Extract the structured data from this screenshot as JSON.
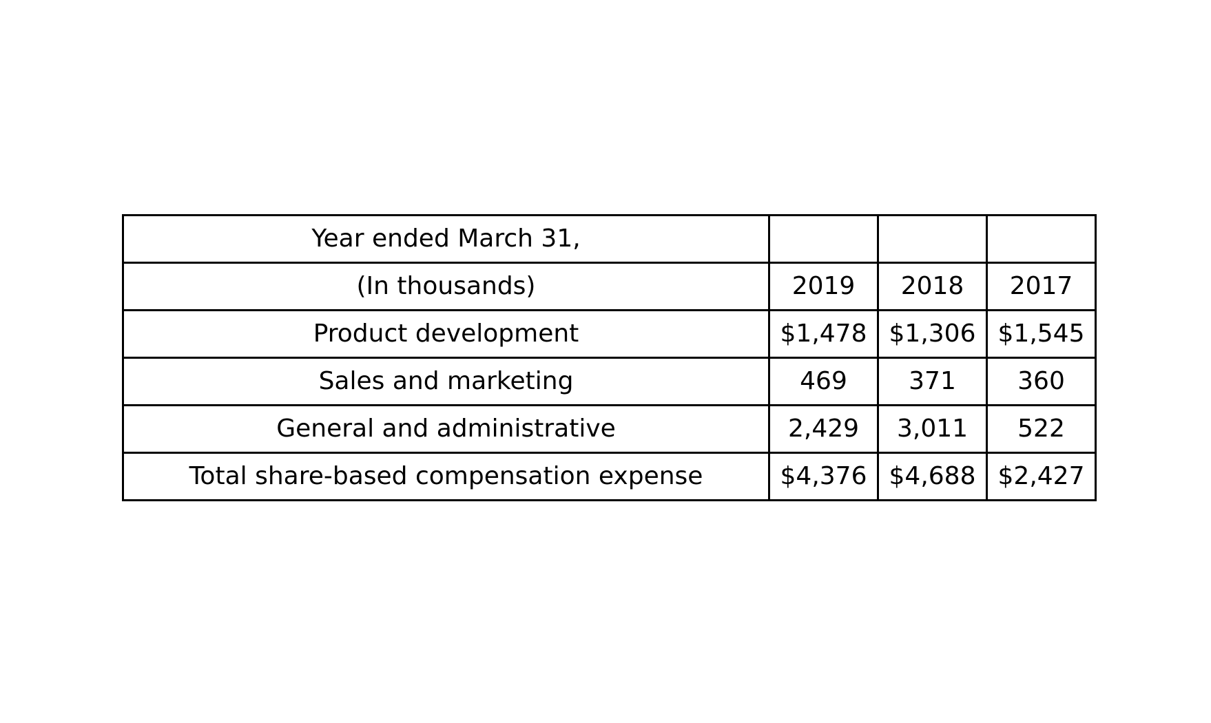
{
  "table": {
    "rows": [
      [
        "Year ended March 31,",
        "",
        "",
        ""
      ],
      [
        "(In thousands)",
        "2019",
        "2018",
        "2017"
      ],
      [
        "Product development",
        "$1,478",
        "$1,306",
        "$1,545"
      ],
      [
        "Sales and marketing",
        "469",
        "371",
        "360"
      ],
      [
        "General and administrative",
        "2,429",
        "3,011",
        "522"
      ],
      [
        "Total share-based compensation expense",
        "$4,376",
        "$4,688",
        "$2,427"
      ]
    ]
  }
}
